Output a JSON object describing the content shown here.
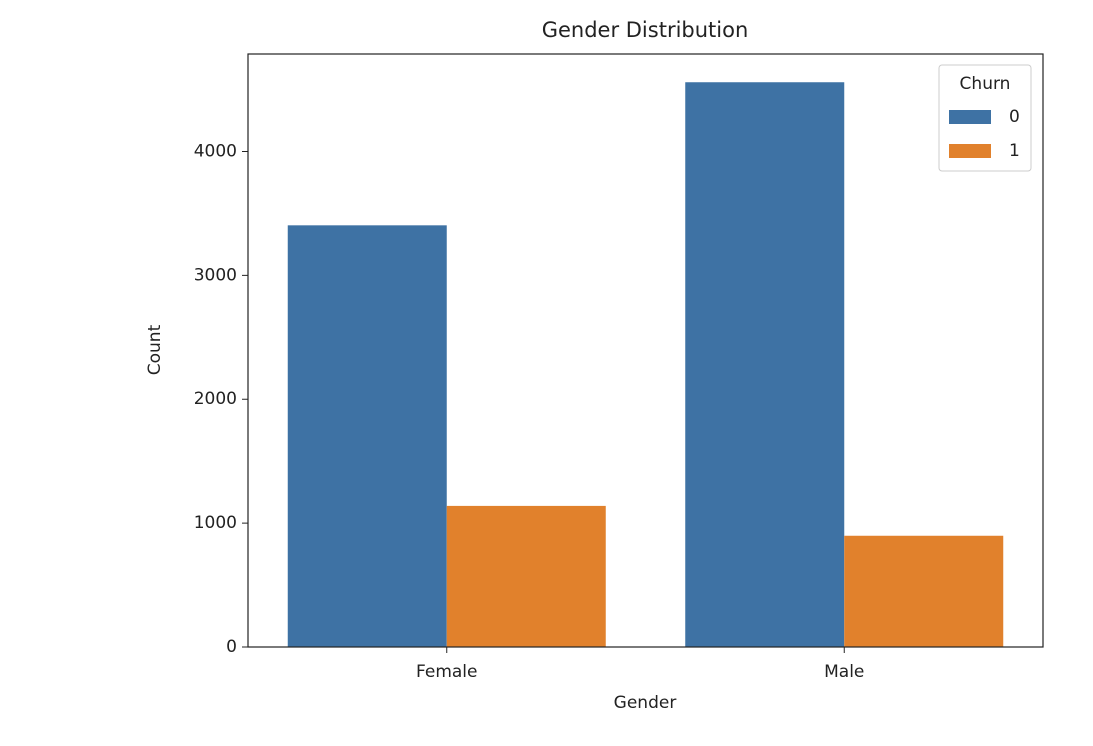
{
  "chart_data": {
    "type": "bar",
    "title": "Gender Distribution",
    "x_label": "Gender",
    "y_label": "Count",
    "categories": [
      "Female",
      "Male"
    ],
    "series": [
      {
        "name": "0",
        "color": "#3e72a4",
        "values": [
          3404,
          4559
        ]
      },
      {
        "name": "1",
        "color": "#e1812c",
        "values": [
          1139,
          898
        ]
      }
    ],
    "legend_title": "Churn",
    "legend_position": "upper right",
    "ylim": [
      0,
      4787
    ],
    "yticks": [
      0,
      1000,
      2000,
      3000,
      4000
    ],
    "grid": false
  }
}
